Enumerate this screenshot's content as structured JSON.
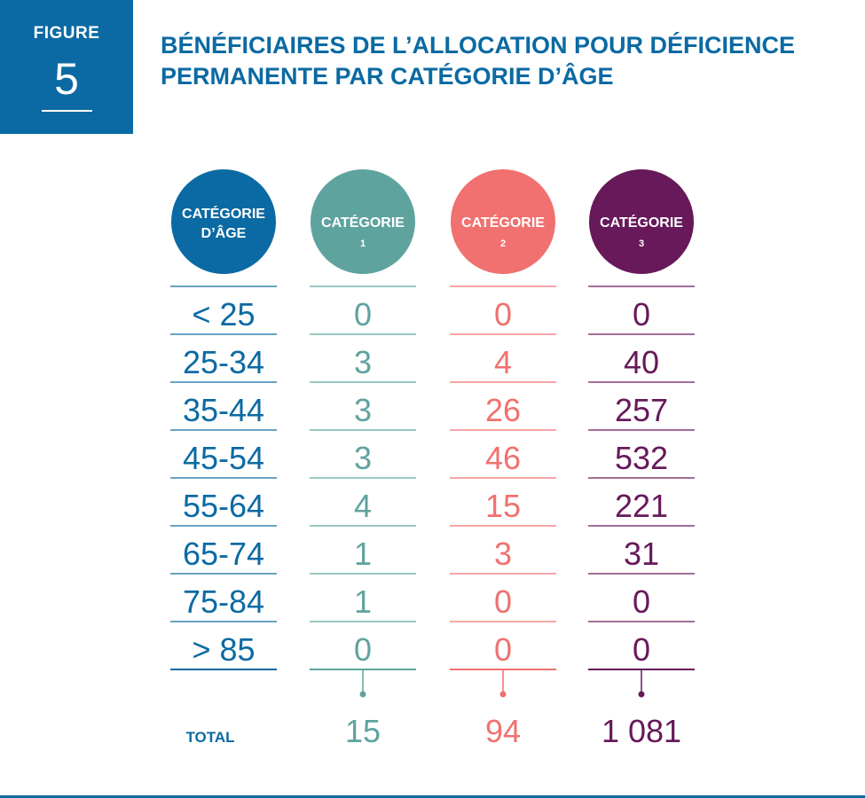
{
  "figure": {
    "label": "FIGURE",
    "number": "5"
  },
  "title": "BÉNÉFICIAIRES DE L’ALLOCATION POUR DÉFICIENCE PERMANENTE PAR CATÉGORIE D’ÂGE",
  "colors": {
    "age": "#0b6aa3",
    "cat1": "#5fa39f",
    "cat2": "#f0716f",
    "cat3": "#67195a",
    "title": "#0b6aa3"
  },
  "chart_data": {
    "type": "table",
    "header": {
      "age": [
        "CATÉGORIE",
        "D’ÂGE"
      ],
      "cat1": [
        "CATÉGORIE",
        "1"
      ],
      "cat2": [
        "CATÉGORIE",
        "2"
      ],
      "cat3": [
        "CATÉGORIE",
        "3"
      ]
    },
    "age_groups": [
      "< 25",
      "25-34",
      "35-44",
      "45-54",
      "55-64",
      "65-74",
      "75-84",
      "> 85"
    ],
    "series": [
      {
        "key": "cat1",
        "values": [
          0,
          3,
          3,
          3,
          4,
          1,
          1,
          0
        ],
        "total": "15"
      },
      {
        "key": "cat2",
        "values": [
          0,
          4,
          26,
          46,
          15,
          3,
          0,
          0
        ],
        "total": "94"
      },
      {
        "key": "cat3",
        "values": [
          0,
          40,
          257,
          532,
          221,
          31,
          0,
          0
        ],
        "total": "1 081"
      }
    ],
    "total_label": "TOTAL"
  }
}
